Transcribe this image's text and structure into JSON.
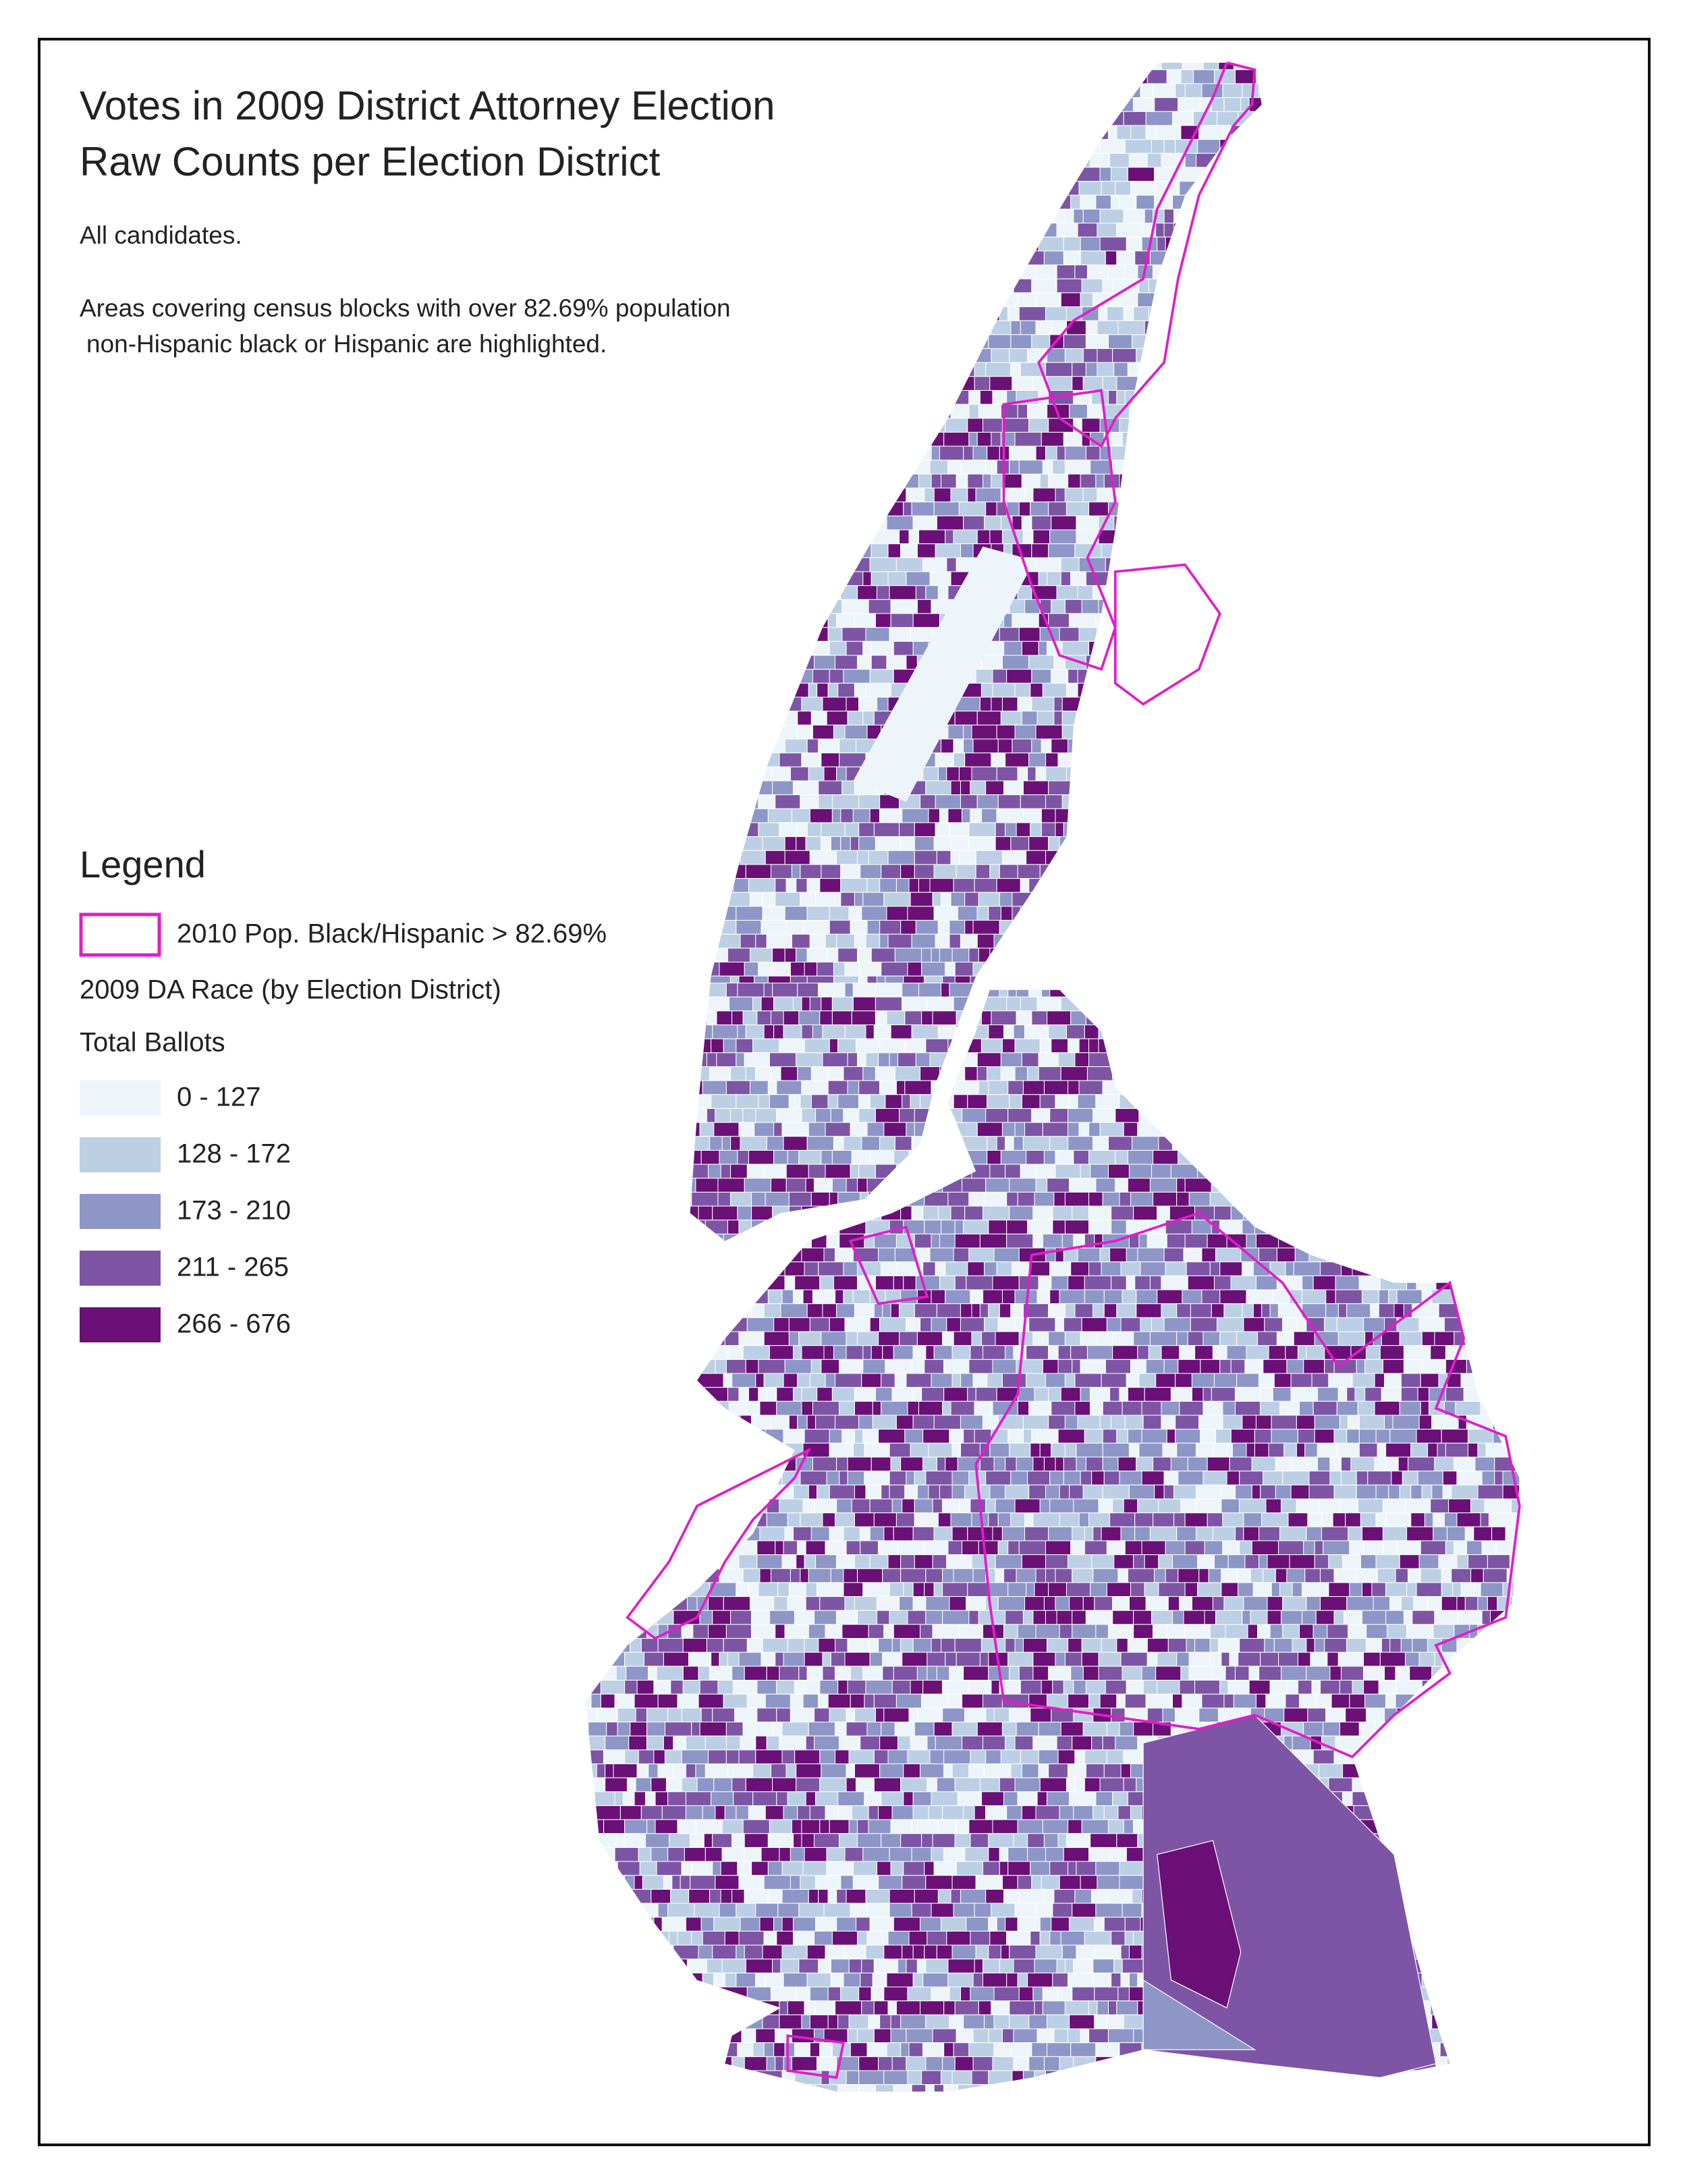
{
  "header": {
    "title": [
      "Votes in 2009 District Attorney Election",
      "Raw Counts per Election District"
    ],
    "notes": [
      "All candidates.",
      "Areas covering census blocks with over 82.69% population",
      "non-Hispanic black or Hispanic are highlighted."
    ]
  },
  "legend": {
    "title": "Legend",
    "highlight": {
      "label": "2010 Pop. Black/Hispanic > 82.69%",
      "color": "#e01ec8"
    },
    "layer": "2009 DA Race (by Election District)",
    "field": "Total Ballots",
    "classes": [
      {
        "label": "0 - 127",
        "color": "#eef5fa"
      },
      {
        "label": "128 - 172",
        "color": "#bccfe4"
      },
      {
        "label": "173 - 210",
        "color": "#8e96c7"
      },
      {
        "label": "211 - 265",
        "color": "#7e55a5"
      },
      {
        "label": "266 - 676",
        "color": "#6a1077"
      }
    ]
  }
}
